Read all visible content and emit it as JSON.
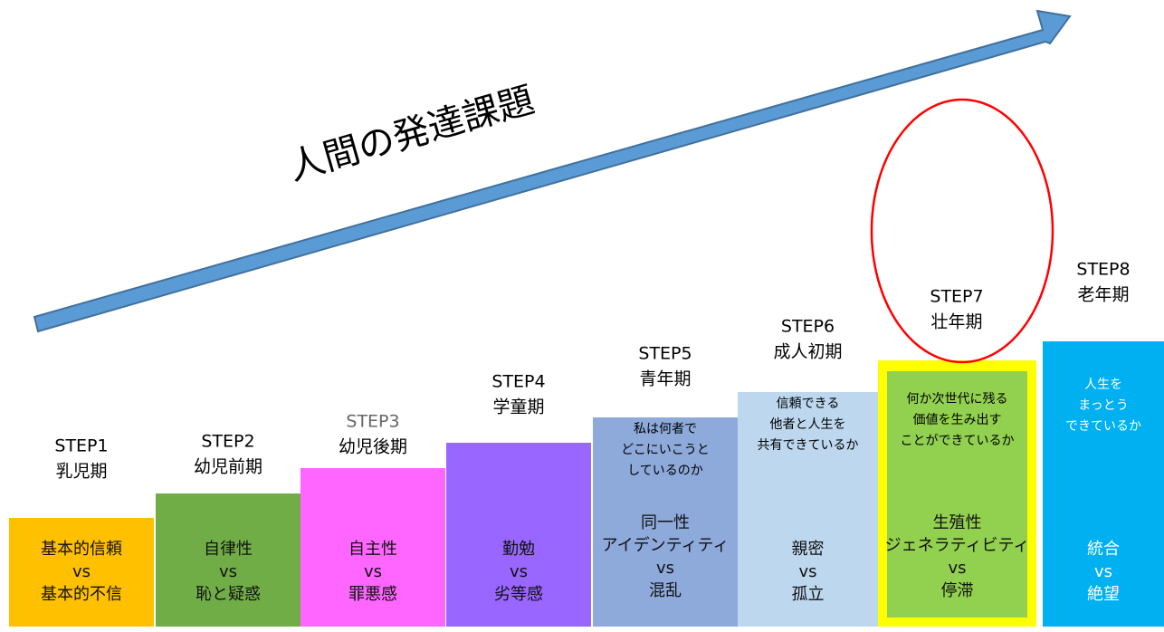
{
  "title": "人間の発達課題",
  "steps": [
    {
      "label": "STEP1",
      "period": "乳児期",
      "color": "#ffc000",
      "task": [
        "基本的信頼",
        "vs",
        "基本的不信"
      ]
    },
    {
      "label": "STEP2",
      "period": "幼児前期",
      "color": "#70ad47",
      "task": [
        "自律性",
        "vs",
        "恥と疑惑"
      ]
    },
    {
      "label": "STEP3",
      "period": "幼児後期",
      "color": "#ff66ff",
      "task": [
        "自主性",
        "vs",
        "罪悪感"
      ]
    },
    {
      "label": "STEP4",
      "period": "学童期",
      "color": "#9966ff",
      "task": [
        "勤勉",
        "vs",
        "劣等感"
      ]
    },
    {
      "label": "STEP5",
      "period": "青年期",
      "color": "#8eaadb",
      "question": [
        "私は何者で",
        "どこにいこうと",
        "しているのか"
      ],
      "task": [
        "同一性",
        "アイデンティティ",
        "vs",
        "混乱"
      ]
    },
    {
      "label": "STEP6",
      "period": "成人初期",
      "color": "#bdd7ee",
      "question": [
        "信頼できる",
        "他者と人生を",
        "共有できているか"
      ],
      "task": [
        "親密",
        "vs",
        "孤立"
      ]
    },
    {
      "label": "STEP7",
      "period": "壮年期",
      "color": "#92d050",
      "question": [
        "何か次世代に残る",
        "価値を生み出す",
        "ことができているか"
      ],
      "task": [
        "生殖性",
        "ジェネラティビティ",
        "vs",
        "停滞"
      ]
    },
    {
      "label": "STEP8",
      "period": "老年期",
      "color": "#00b0f0",
      "question": [
        "人生を",
        "まっとう",
        "できているか"
      ],
      "task": [
        "統合",
        "vs",
        "絶望"
      ]
    }
  ]
}
